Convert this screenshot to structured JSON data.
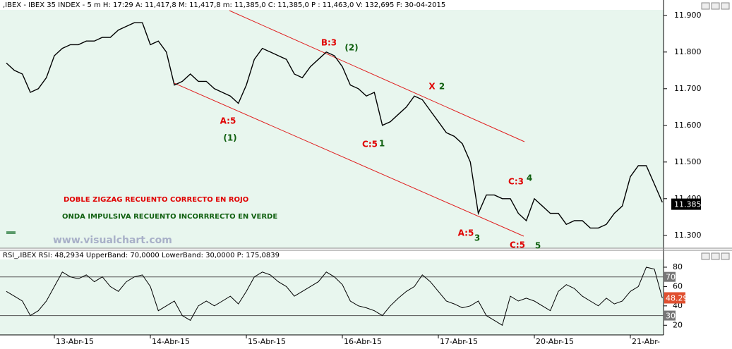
{
  "chart_data": [
    {
      "type": "line",
      "title": ",IBEX - IBEX 35 INDEX -  5 m H: 17:29 A: 11,417,8 M: 11,417,8 m: 11,385,0 C: 11,385,0 P : 11,463,0 V: 132,695 F: 30-04-2015",
      "series": [
        {
          "name": "IBEX",
          "color": "#000000",
          "values": [
            11.77,
            11.75,
            11.74,
            11.69,
            11.7,
            11.73,
            11.79,
            11.81,
            11.82,
            11.82,
            11.83,
            11.83,
            11.84,
            11.84,
            11.86,
            11.87,
            11.88,
            11.88,
            11.82,
            11.83,
            11.8,
            11.71,
            11.72,
            11.74,
            11.72,
            11.72,
            11.7,
            11.69,
            11.68,
            11.66,
            11.71,
            11.78,
            11.81,
            11.8,
            11.79,
            11.78,
            11.74,
            11.73,
            11.76,
            11.78,
            11.8,
            11.79,
            11.76,
            11.71,
            11.7,
            11.68,
            11.69,
            11.6,
            11.61,
            11.63,
            11.65,
            11.68,
            11.67,
            11.64,
            11.61,
            11.58,
            11.57,
            11.55,
            11.5,
            11.36,
            11.41,
            11.41,
            11.4,
            11.4,
            11.36,
            11.34,
            11.4,
            11.38,
            11.36,
            11.36,
            11.33,
            11.34,
            11.34,
            11.32,
            11.32,
            11.33,
            11.36,
            11.38,
            11.46,
            11.49,
            11.49,
            11.44,
            11.39
          ]
        }
      ],
      "ylim": [
        11.265,
        11.915
      ],
      "yticks": [
        {
          "value": 11.3,
          "label": "11.300"
        },
        {
          "value": 11.4,
          "label": "11.400"
        },
        {
          "value": 11.5,
          "label": "11.500"
        },
        {
          "value": 11.6,
          "label": "11.600"
        },
        {
          "value": 11.7,
          "label": "11.700"
        },
        {
          "value": 11.8,
          "label": "11.800"
        },
        {
          "value": 11.9,
          "label": "11.900"
        }
      ],
      "current": {
        "value": 11.385,
        "label": "11.385"
      },
      "annotations": [
        {
          "text": "B:3",
          "color": "#e00000"
        },
        {
          "text": "(2)",
          "color": "#106010"
        },
        {
          "text": "X",
          "color": "#e00000"
        },
        {
          "text": "2",
          "color": "#106010"
        },
        {
          "text": "A:5",
          "color": "#e00000"
        },
        {
          "text": "(1)",
          "color": "#106010"
        },
        {
          "text": "C:5",
          "color": "#e00000"
        },
        {
          "text": "1",
          "color": "#106010"
        },
        {
          "text": "C:3",
          "color": "#e00000"
        },
        {
          "text": "4",
          "color": "#106010"
        },
        {
          "text": "A:5",
          "color": "#e00000"
        },
        {
          "text": "3",
          "color": "#106010"
        },
        {
          "text": "C:5",
          "color": "#e00000"
        },
        {
          "text": "5",
          "color": "#106010"
        },
        {
          "text": "DOBLE ZIGZAG RECUENTO CORRECTO EN ROJO",
          "color": "#e00000"
        },
        {
          "text": "ONDA IMPULSIVA RECUENTO INCORRRECTO EN VERDE",
          "color": "#106010"
        },
        {
          "text": "www.visualchart.com",
          "color": "#a8b0c8"
        }
      ]
    },
    {
      "type": "line",
      "title": "RSI_,IBEX RSI: 48,2934 UpperBand: 70,0000 LowerBand: 30,0000 P: 175,0839",
      "categories": [
        null,
        null,
        null,
        null,
        null,
        null,
        "13-Abr-15",
        null,
        null,
        null,
        null,
        null,
        null,
        null,
        null,
        null,
        null,
        null,
        "14-Abr-15",
        null,
        null,
        null,
        null,
        null,
        null,
        null,
        null,
        null,
        null,
        null,
        "15-Abr-15",
        null,
        null,
        null,
        null,
        null,
        null,
        null,
        null,
        null,
        null,
        null,
        "16-Abr-15",
        null,
        null,
        null,
        null,
        null,
        null,
        null,
        null,
        null,
        null,
        null,
        "17-Abr-15",
        null,
        null,
        null,
        null,
        null,
        null,
        null,
        null,
        null,
        null,
        null,
        "20-Abr-15",
        null,
        null,
        null,
        null,
        null,
        null,
        null,
        null,
        null,
        null,
        null,
        "21-Abr-",
        null,
        null,
        null,
        null
      ],
      "series": [
        {
          "name": "RSI",
          "color": "#000000",
          "values": [
            55,
            50,
            45,
            30,
            35,
            45,
            60,
            75,
            70,
            68,
            72,
            65,
            70,
            60,
            55,
            65,
            70,
            72,
            60,
            35,
            40,
            45,
            30,
            25,
            40,
            45,
            40,
            45,
            50,
            42,
            55,
            70,
            75,
            72,
            65,
            60,
            50,
            55,
            60,
            65,
            75,
            70,
            62,
            45,
            40,
            38,
            35,
            30,
            40,
            48,
            55,
            60,
            72,
            65,
            55,
            45,
            42,
            38,
            40,
            45,
            30,
            25,
            20,
            50,
            45,
            48,
            45,
            40,
            35,
            55,
            62,
            58,
            50,
            45,
            40,
            48,
            42,
            45,
            55,
            60,
            80,
            78,
            48
          ]
        }
      ],
      "ylim": [
        10,
        88
      ],
      "yticks": [
        20,
        40,
        60,
        80
      ],
      "bands": [
        70,
        30
      ],
      "current": {
        "value": 48.29,
        "label": "48.29"
      }
    }
  ]
}
